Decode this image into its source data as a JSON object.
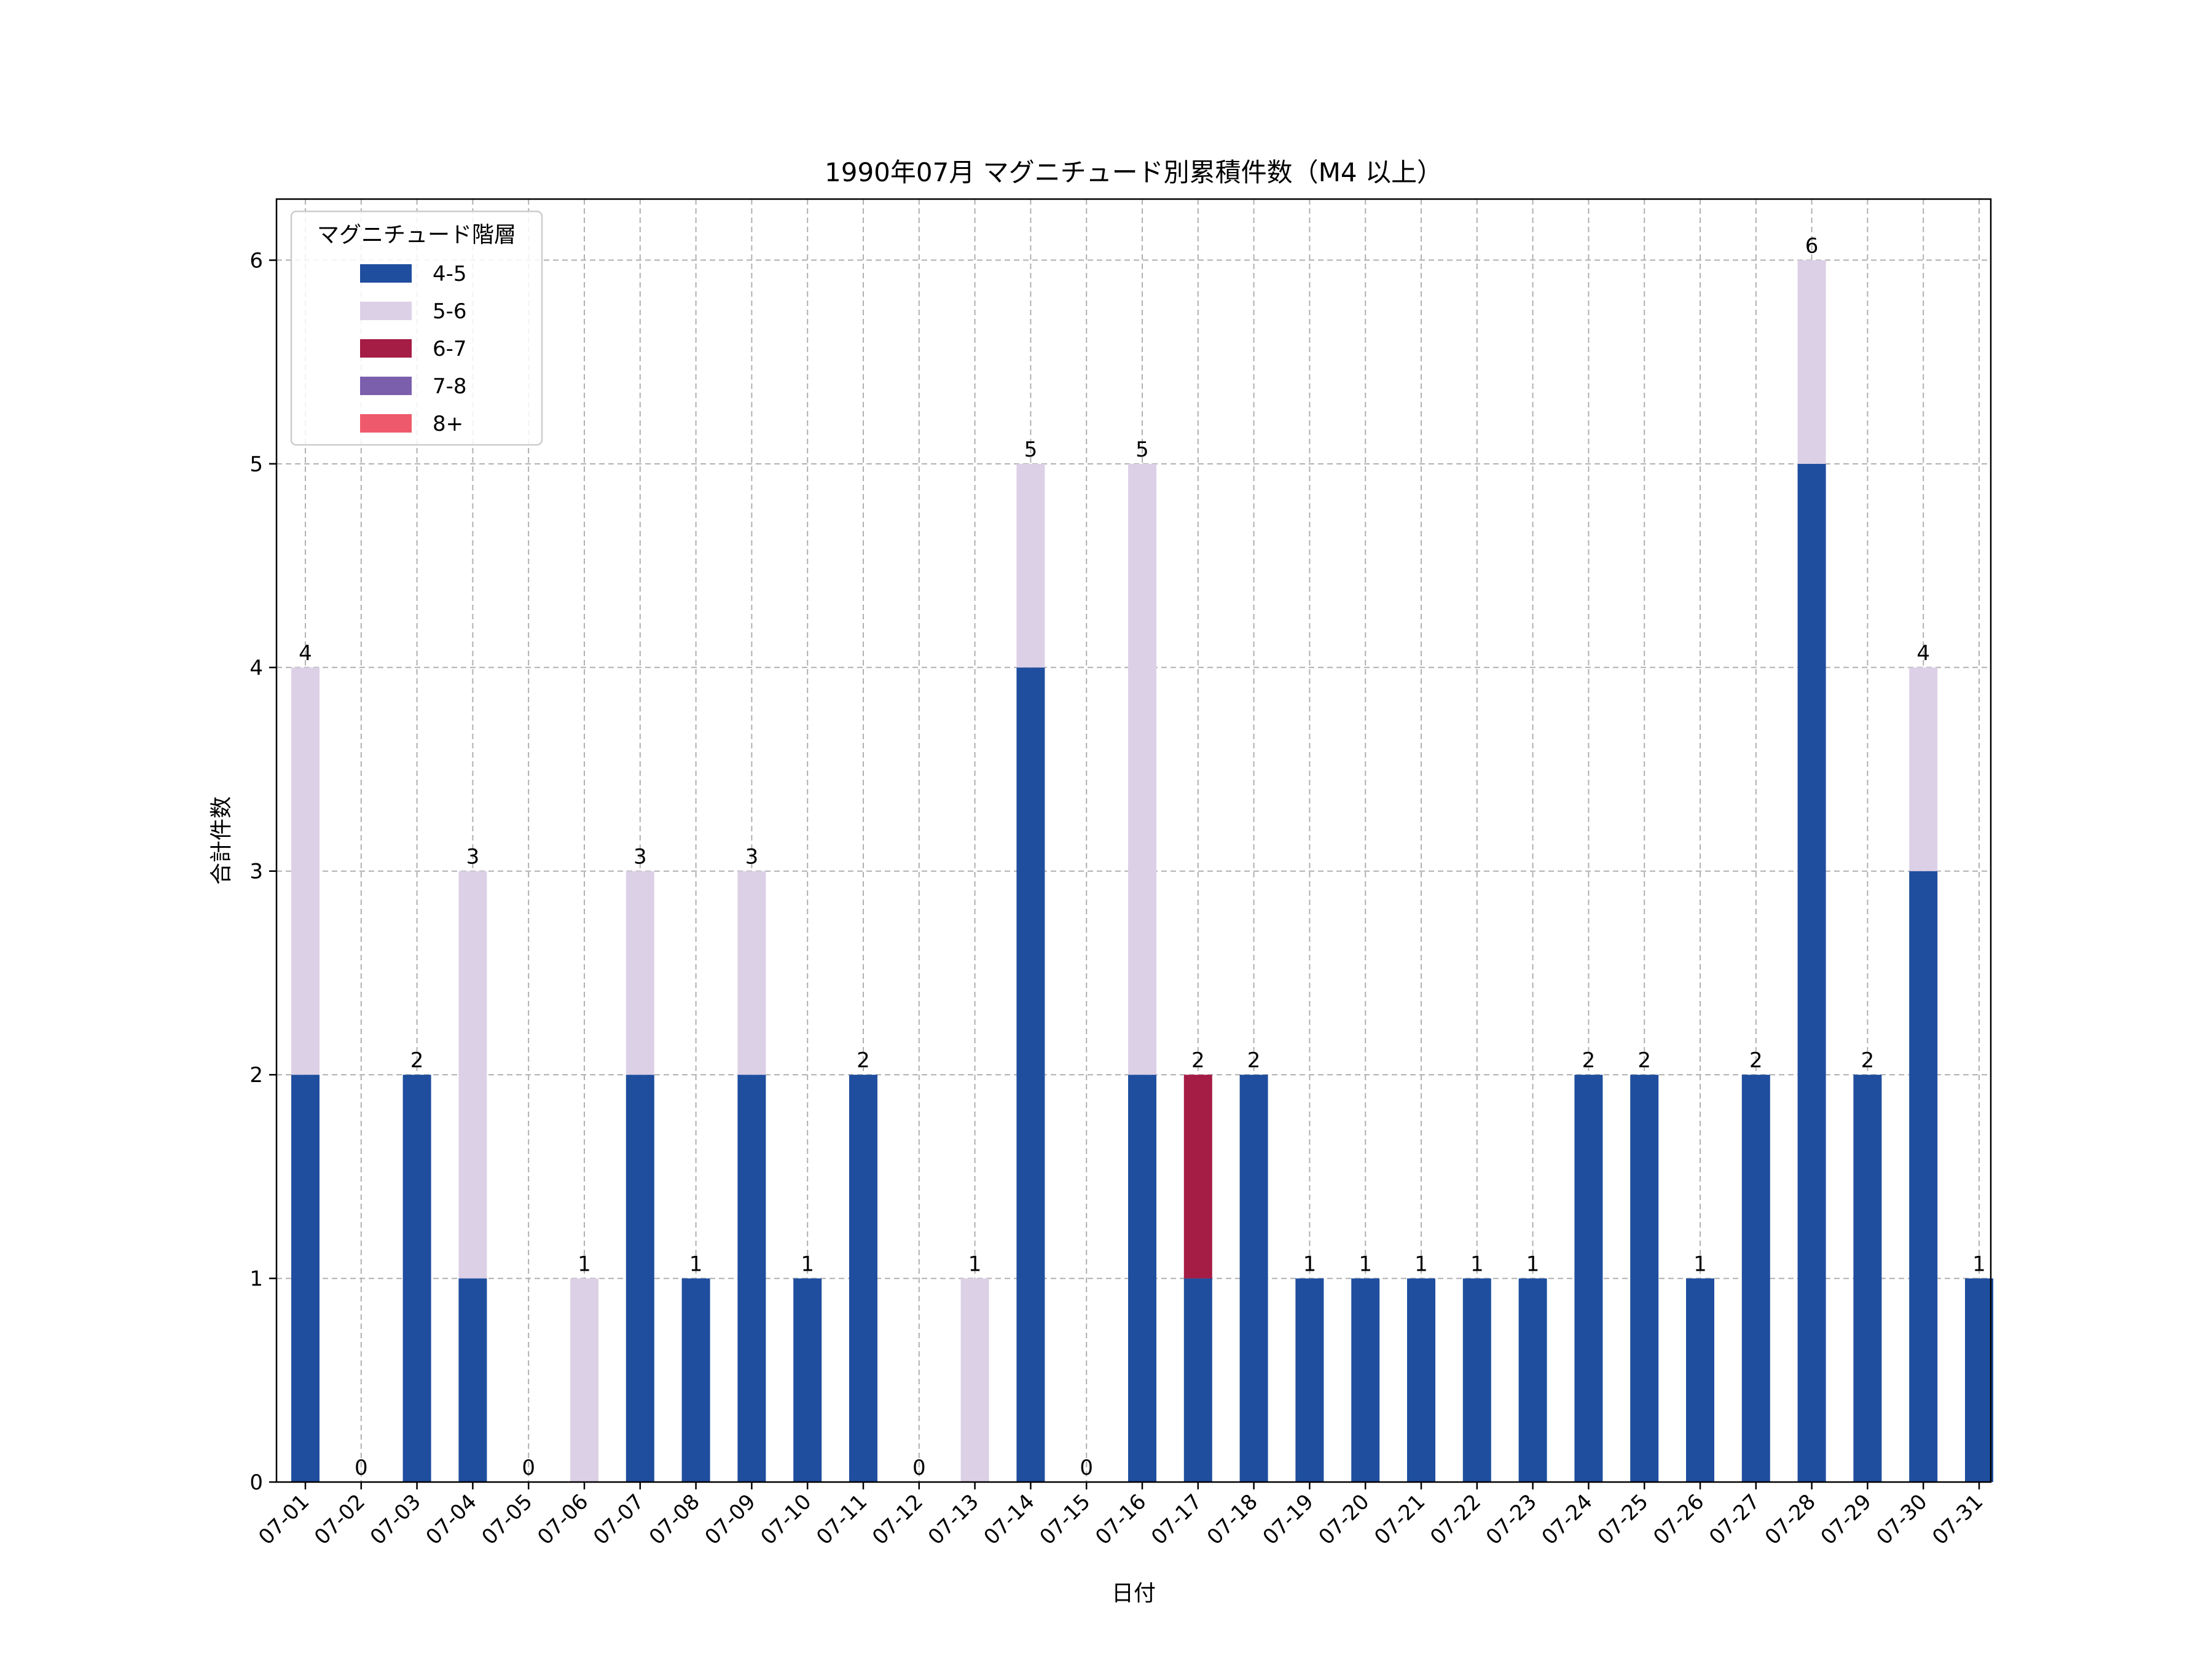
{
  "chart_data": {
    "type": "bar",
    "stacked": true,
    "title": "1990年07月 マグニチュード別累積件数（M4 以上）",
    "xlabel": "日付",
    "ylabel": "合計件数",
    "ylim": [
      0,
      6.3
    ],
    "yticks": [
      0,
      1,
      2,
      3,
      4,
      5,
      6
    ],
    "grid": true,
    "legend": {
      "title": "マグニチュード階層",
      "placement": "top-left"
    },
    "categories": [
      "07-01",
      "07-02",
      "07-03",
      "07-04",
      "07-05",
      "07-06",
      "07-07",
      "07-08",
      "07-09",
      "07-10",
      "07-11",
      "07-12",
      "07-13",
      "07-14",
      "07-15",
      "07-16",
      "07-17",
      "07-18",
      "07-19",
      "07-20",
      "07-21",
      "07-22",
      "07-23",
      "07-24",
      "07-25",
      "07-26",
      "07-27",
      "07-28",
      "07-29",
      "07-30",
      "07-31"
    ],
    "series": [
      {
        "name": "4-5",
        "color": "#1f4e9e",
        "values": [
          2,
          0,
          2,
          1,
          0,
          0,
          2,
          1,
          2,
          1,
          2,
          0,
          0,
          4,
          0,
          2,
          1,
          2,
          1,
          1,
          1,
          1,
          1,
          2,
          2,
          1,
          2,
          5,
          2,
          3,
          1
        ]
      },
      {
        "name": "5-6",
        "color": "#dcd0e6",
        "values": [
          2,
          0,
          0,
          2,
          0,
          1,
          1,
          0,
          1,
          0,
          0,
          0,
          1,
          1,
          0,
          3,
          0,
          0,
          0,
          0,
          0,
          0,
          0,
          0,
          0,
          0,
          0,
          1,
          0,
          1,
          0
        ]
      },
      {
        "name": "6-7",
        "color": "#a51c45",
        "values": [
          0,
          0,
          0,
          0,
          0,
          0,
          0,
          0,
          0,
          0,
          0,
          0,
          0,
          0,
          0,
          0,
          1,
          0,
          0,
          0,
          0,
          0,
          0,
          0,
          0,
          0,
          0,
          0,
          0,
          0,
          0
        ]
      },
      {
        "name": "7-8",
        "color": "#7b5fad",
        "values": [
          0,
          0,
          0,
          0,
          0,
          0,
          0,
          0,
          0,
          0,
          0,
          0,
          0,
          0,
          0,
          0,
          0,
          0,
          0,
          0,
          0,
          0,
          0,
          0,
          0,
          0,
          0,
          0,
          0,
          0,
          0
        ]
      },
      {
        "name": "8+",
        "color": "#ee5a6b",
        "values": [
          0,
          0,
          0,
          0,
          0,
          0,
          0,
          0,
          0,
          0,
          0,
          0,
          0,
          0,
          0,
          0,
          0,
          0,
          0,
          0,
          0,
          0,
          0,
          0,
          0,
          0,
          0,
          0,
          0,
          0,
          0
        ]
      }
    ],
    "totals": [
      4,
      0,
      2,
      3,
      0,
      1,
      3,
      1,
      3,
      1,
      2,
      0,
      1,
      5,
      0,
      5,
      2,
      2,
      1,
      1,
      1,
      1,
      1,
      2,
      2,
      1,
      2,
      6,
      2,
      4,
      1
    ]
  }
}
